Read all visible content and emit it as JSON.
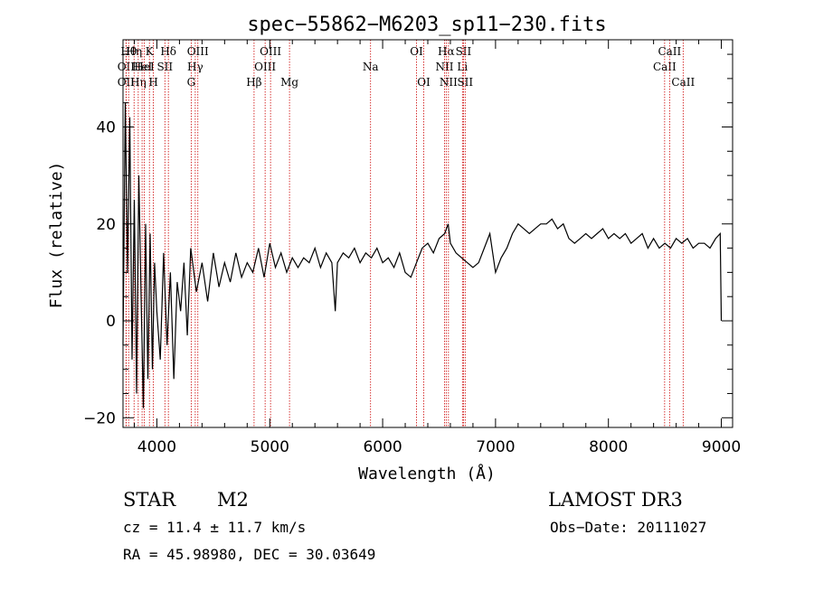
{
  "chart_data": {
    "type": "line",
    "title": "spec−55862−M6203_sp11−230.fits",
    "xlabel": "Wavelength (Å)",
    "ylabel": "Flux (relative)",
    "xlim": [
      3700,
      9100
    ],
    "ylim": [
      -22,
      58
    ],
    "xticks": [
      4000,
      5000,
      6000,
      7000,
      8000,
      9000
    ],
    "xtick_labels": [
      "4000",
      "5000",
      "6000",
      "7000",
      "8000",
      "9000"
    ],
    "yticks": [
      -20,
      0,
      20,
      40
    ],
    "ytick_labels": [
      "−20",
      "0",
      "20",
      "40"
    ],
    "line_color": "#000000",
    "marker_color": "#cc0000",
    "spectrum": {
      "name": "flux",
      "x": [
        3700,
        3720,
        3740,
        3760,
        3780,
        3800,
        3820,
        3840,
        3860,
        3880,
        3900,
        3920,
        3940,
        3960,
        3980,
        4000,
        4030,
        4060,
        4090,
        4120,
        4150,
        4180,
        4210,
        4240,
        4270,
        4300,
        4350,
        4400,
        4450,
        4500,
        4550,
        4600,
        4650,
        4700,
        4750,
        4800,
        4850,
        4900,
        4950,
        5000,
        5050,
        5100,
        5150,
        5200,
        5250,
        5300,
        5350,
        5400,
        5450,
        5500,
        5550,
        5580,
        5600,
        5650,
        5700,
        5750,
        5800,
        5850,
        5900,
        5950,
        6000,
        6050,
        6100,
        6150,
        6200,
        6250,
        6300,
        6350,
        6400,
        6450,
        6500,
        6550,
        6580,
        6600,
        6650,
        6700,
        6750,
        6800,
        6850,
        6900,
        6950,
        7000,
        7050,
        7100,
        7150,
        7200,
        7250,
        7300,
        7350,
        7400,
        7450,
        7500,
        7550,
        7600,
        7650,
        7700,
        7750,
        7800,
        7850,
        7900,
        7950,
        8000,
        8050,
        8100,
        8150,
        8200,
        8250,
        8300,
        8350,
        8400,
        8450,
        8500,
        8550,
        8600,
        8650,
        8700,
        8750,
        8800,
        8850,
        8900,
        8950,
        8990,
        9000
      ],
      "values": [
        -5,
        45,
        10,
        42,
        -8,
        25,
        -15,
        30,
        5,
        -18,
        20,
        -12,
        18,
        -10,
        12,
        2,
        -8,
        14,
        -5,
        10,
        -12,
        8,
        2,
        12,
        -3,
        15,
        6,
        12,
        4,
        14,
        7,
        12,
        8,
        14,
        9,
        12,
        10,
        15,
        9,
        16,
        11,
        14,
        10,
        13,
        11,
        13,
        12,
        15,
        11,
        14,
        12,
        2,
        12,
        14,
        13,
        15,
        12,
        14,
        13,
        15,
        12,
        13,
        11,
        14,
        10,
        9,
        12,
        15,
        16,
        14,
        17,
        18,
        20,
        16,
        14,
        13,
        12,
        11,
        12,
        15,
        18,
        10,
        13,
        15,
        18,
        20,
        19,
        18,
        19,
        20,
        20,
        21,
        19,
        20,
        17,
        16,
        17,
        18,
        17,
        18,
        19,
        17,
        18,
        17,
        18,
        16,
        17,
        18,
        15,
        17,
        15,
        16,
        15,
        17,
        16,
        17,
        15,
        16,
        16,
        15,
        17,
        18,
        0
      ]
    },
    "marker_lines": [
      {
        "wavelength": 3727,
        "label": "OII",
        "row": 2
      },
      {
        "wavelength": 3727,
        "label": "OII",
        "row": 3
      },
      {
        "wavelength": 3750,
        "label": "Hθ",
        "row": 1
      },
      {
        "wavelength": 3798,
        "label": "Hη",
        "row": 1
      },
      {
        "wavelength": 3835,
        "label": "Hη",
        "row": 3
      },
      {
        "wavelength": 3869,
        "label": "HeI",
        "row": 2
      },
      {
        "wavelength": 3889,
        "label": "HeI",
        "row": 2
      },
      {
        "wavelength": 3934,
        "label": "K",
        "row": 1
      },
      {
        "wavelength": 3969,
        "label": "H",
        "row": 3
      },
      {
        "wavelength": 4071,
        "label": "SII",
        "row": 2
      },
      {
        "wavelength": 4102,
        "label": "Hδ",
        "row": 1
      },
      {
        "wavelength": 4304,
        "label": "G",
        "row": 3
      },
      {
        "wavelength": 4340,
        "label": "Hγ",
        "row": 2
      },
      {
        "wavelength": 4363,
        "label": "OIII",
        "row": 1
      },
      {
        "wavelength": 4861,
        "label": "Hβ",
        "row": 3
      },
      {
        "wavelength": 4959,
        "label": "OIII",
        "row": 2
      },
      {
        "wavelength": 5007,
        "label": "OIII",
        "row": 1
      },
      {
        "wavelength": 5175,
        "label": "Mg",
        "row": 3
      },
      {
        "wavelength": 5893,
        "label": "Na",
        "row": 2
      },
      {
        "wavelength": 6300,
        "label": "OI",
        "row": 1
      },
      {
        "wavelength": 6364,
        "label": "OI",
        "row": 3
      },
      {
        "wavelength": 6548,
        "label": "NII",
        "row": 2
      },
      {
        "wavelength": 6563,
        "label": "Hα",
        "row": 1
      },
      {
        "wavelength": 6583,
        "label": "NII",
        "row": 3
      },
      {
        "wavelength": 6707,
        "label": "Li",
        "row": 2
      },
      {
        "wavelength": 6716,
        "label": "SII",
        "row": 1
      },
      {
        "wavelength": 6731,
        "label": "SII",
        "row": 3
      },
      {
        "wavelength": 8498,
        "label": "CaII",
        "row": 2
      },
      {
        "wavelength": 8542,
        "label": "CaII",
        "row": 1
      },
      {
        "wavelength": 8662,
        "label": "CaII",
        "row": 3
      }
    ]
  },
  "info": {
    "class": "STAR",
    "subclass": "M2",
    "survey": "LAMOST DR3",
    "cz": "cz = 11.4 ± 11.7 km/s",
    "obs_date": "Obs−Date: 20111027",
    "coords": "RA =  45.98980, DEC =  30.03649"
  }
}
